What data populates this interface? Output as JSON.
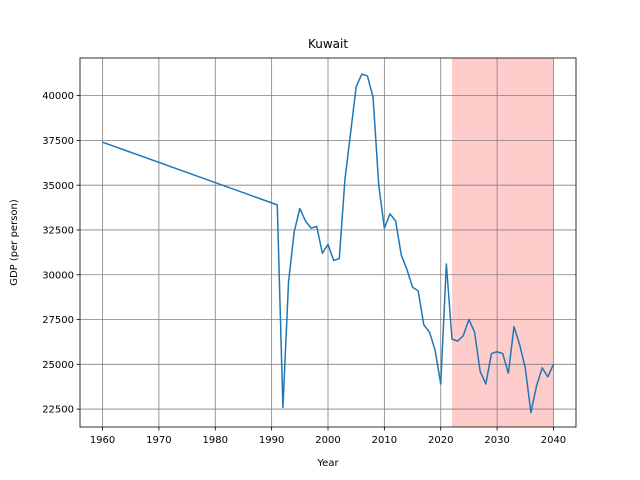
{
  "chart_data": {
    "type": "line",
    "title": "Kuwait",
    "xlabel": "Year",
    "ylabel": "GDP (per person)",
    "xlim": [
      1956,
      2044
    ],
    "ylim": [
      21500,
      42100
    ],
    "xticks": [
      1960,
      1970,
      1980,
      1990,
      2000,
      2010,
      2020,
      2030,
      2040
    ],
    "yticks": [
      22500,
      25000,
      27500,
      30000,
      32500,
      35000,
      37500,
      40000
    ],
    "grid": true,
    "line_color": "#1f77b4",
    "grid_color": "#808080",
    "highlight": {
      "x_start": 2022,
      "x_end": 2040,
      "color": "#ffcccc"
    },
    "series": [
      {
        "x": [
          1960,
          1991,
          1992,
          1993,
          1994,
          1995,
          1996,
          1997,
          1998,
          1999,
          2000,
          2001,
          2002,
          2003,
          2004,
          2005,
          2006,
          2007,
          2008,
          2009,
          2010,
          2011,
          2012,
          2013,
          2014,
          2015,
          2016,
          2017,
          2018,
          2019,
          2020,
          2021,
          2022,
          2023,
          2024,
          2025,
          2026,
          2027,
          2028,
          2029,
          2030,
          2031,
          2032,
          2033,
          2034,
          2035,
          2036,
          2037,
          2038,
          2039,
          2040
        ],
        "values": [
          37400,
          33900,
          22600,
          29600,
          32400,
          33700,
          33000,
          32600,
          32700,
          31200,
          31700,
          30800,
          30900,
          35300,
          37900,
          40500,
          41200,
          41100,
          39900,
          35000,
          32600,
          33400,
          33000,
          31100,
          30300,
          29300,
          29100,
          27200,
          26800,
          25800,
          23900,
          30600,
          26400,
          26300,
          26600,
          27500,
          26800,
          24600,
          23900,
          25600,
          25700,
          25600,
          24500,
          27100,
          26100,
          24800,
          22300,
          23800,
          24800,
          24300,
          25000
        ]
      }
    ]
  }
}
